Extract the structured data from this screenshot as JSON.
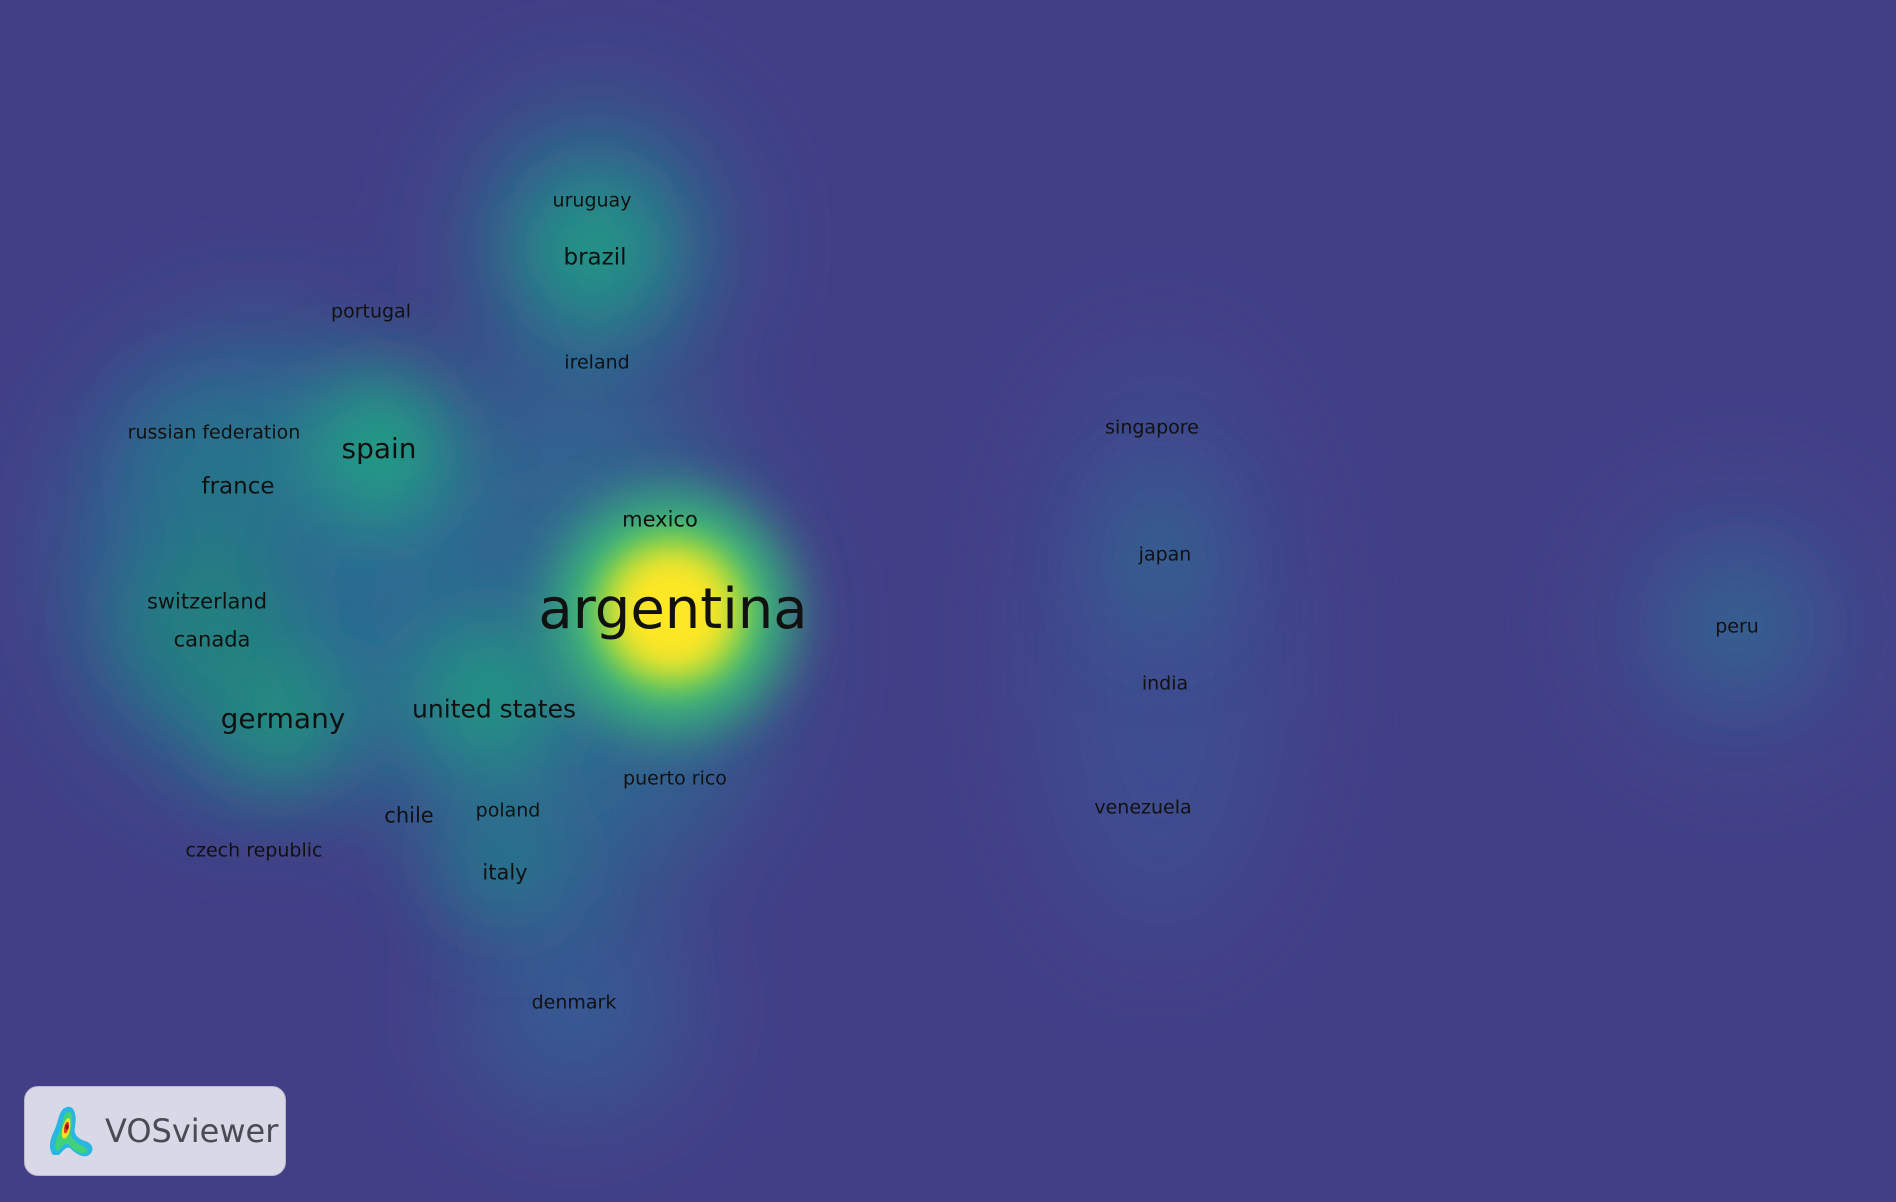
{
  "app": {
    "logo_text": "VOSviewer"
  },
  "colors": {
    "background": "#433f87",
    "low": "#2b7a8e",
    "mid": "#22a884",
    "high": "#fde725"
  },
  "nodes": [
    {
      "label": "argentina",
      "size": "xl",
      "weight": 1.0
    },
    {
      "label": "brazil",
      "size": "m",
      "weight": 0.55
    },
    {
      "label": "uruguay",
      "size": "xs",
      "weight": 0.2
    },
    {
      "label": "portugal",
      "size": "xs",
      "weight": 0.2
    },
    {
      "label": "ireland",
      "size": "xs",
      "weight": 0.2
    },
    {
      "label": "spain",
      "size": "l",
      "weight": 0.6
    },
    {
      "label": "russian federation",
      "size": "xs",
      "weight": 0.2
    },
    {
      "label": "france",
      "size": "m",
      "weight": 0.4
    },
    {
      "label": "mexico",
      "size": "s",
      "weight": 0.3
    },
    {
      "label": "switzerland",
      "size": "s",
      "weight": 0.3
    },
    {
      "label": "canada",
      "size": "s",
      "weight": 0.35
    },
    {
      "label": "germany",
      "size": "l",
      "weight": 0.55
    },
    {
      "label": "united states",
      "size": "ml",
      "weight": 0.6
    },
    {
      "label": "puerto rico",
      "size": "xs",
      "weight": 0.2
    },
    {
      "label": "chile",
      "size": "s",
      "weight": 0.3
    },
    {
      "label": "poland",
      "size": "xs",
      "weight": 0.2
    },
    {
      "label": "czech republic",
      "size": "xs",
      "weight": 0.2
    },
    {
      "label": "italy",
      "size": "s",
      "weight": 0.35
    },
    {
      "label": "denmark",
      "size": "xs",
      "weight": 0.25
    },
    {
      "label": "singapore",
      "size": "xs",
      "weight": 0.15
    },
    {
      "label": "japan",
      "size": "xs",
      "weight": 0.2
    },
    {
      "label": "india",
      "size": "xs",
      "weight": 0.15
    },
    {
      "label": "venezuela",
      "size": "xs",
      "weight": 0.15
    },
    {
      "label": "peru",
      "size": "xs",
      "weight": 0.2
    }
  ]
}
